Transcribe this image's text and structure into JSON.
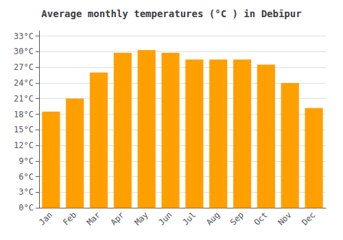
{
  "chart_data": {
    "type": "bar",
    "title": "Average monthly temperatures (°C ) in Debīpur",
    "categories": [
      "Jan",
      "Feb",
      "Mar",
      "Apr",
      "May",
      "Jun",
      "Jul",
      "Aug",
      "Sep",
      "Oct",
      "Nov",
      "Dec"
    ],
    "values": [
      18.5,
      21.0,
      26.0,
      29.8,
      30.3,
      29.8,
      28.5,
      28.5,
      28.5,
      27.5,
      24.0,
      19.2
    ],
    "color": "#FFA000",
    "ylim": [
      0,
      34
    ],
    "yticks": [
      {
        "value": 0,
        "label": "0°C"
      },
      {
        "value": 3,
        "label": "3°C"
      },
      {
        "value": 6,
        "label": "6°C"
      },
      {
        "value": 9,
        "label": "9°C"
      },
      {
        "value": 12,
        "label": "12°C"
      },
      {
        "value": 15,
        "label": "15°C"
      },
      {
        "value": 18,
        "label": "18°C"
      },
      {
        "value": 21,
        "label": "21°C"
      },
      {
        "value": 24,
        "label": "24°C"
      },
      {
        "value": 27,
        "label": "27°C"
      },
      {
        "value": 30,
        "label": "30°C"
      },
      {
        "value": 33,
        "label": "33°C"
      }
    ],
    "grid": true
  }
}
